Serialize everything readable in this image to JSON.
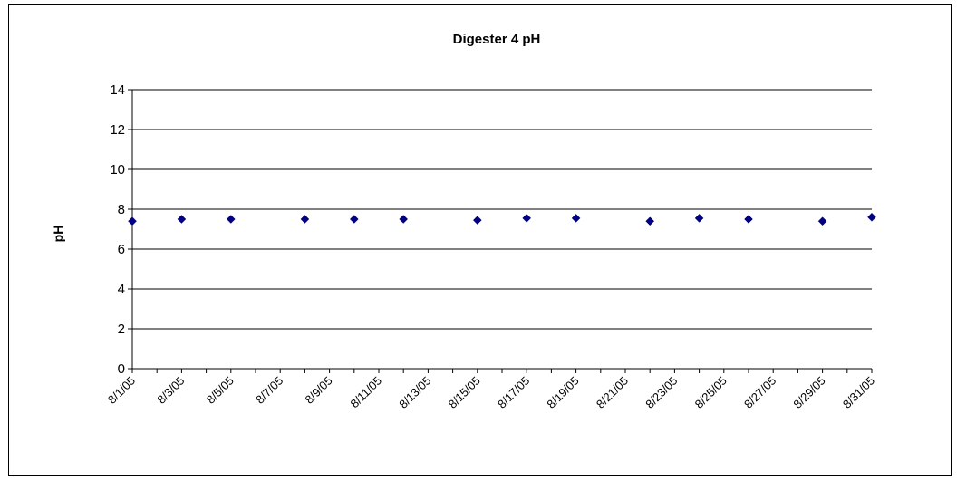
{
  "chart_data": {
    "type": "scatter",
    "title": "Digester 4 pH",
    "xlabel": "",
    "ylabel": "pH",
    "ylim": [
      0,
      14
    ],
    "yticks": [
      "0",
      "2",
      "4",
      "6",
      "8",
      "10",
      "12",
      "14"
    ],
    "xlim": [
      "8/1/05",
      "8/31/05"
    ],
    "xtick_labels": [
      "8/1/05",
      "8/3/05",
      "8/5/05",
      "8/7/05",
      "8/9/05",
      "8/11/05",
      "8/13/05",
      "8/15/05",
      "8/17/05",
      "8/19/05",
      "8/21/05",
      "8/23/05",
      "8/25/05",
      "8/27/05",
      "8/29/05",
      "8/31/05"
    ],
    "grid": "horizontal",
    "marker_color": "#000080",
    "series": [
      {
        "points": [
          {
            "x": "8/1/05",
            "y": 7.4
          },
          {
            "x": "8/3/05",
            "y": 7.5
          },
          {
            "x": "8/5/05",
            "y": 7.5
          },
          {
            "x": "8/8/05",
            "y": 7.5
          },
          {
            "x": "8/10/05",
            "y": 7.5
          },
          {
            "x": "8/12/05",
            "y": 7.5
          },
          {
            "x": "8/15/05",
            "y": 7.45
          },
          {
            "x": "8/17/05",
            "y": 7.55
          },
          {
            "x": "8/19/05",
            "y": 7.55
          },
          {
            "x": "8/22/05",
            "y": 7.4
          },
          {
            "x": "8/24/05",
            "y": 7.55
          },
          {
            "x": "8/26/05",
            "y": 7.5
          },
          {
            "x": "8/29/05",
            "y": 7.4
          },
          {
            "x": "8/31/05",
            "y": 7.6
          }
        ]
      }
    ]
  }
}
